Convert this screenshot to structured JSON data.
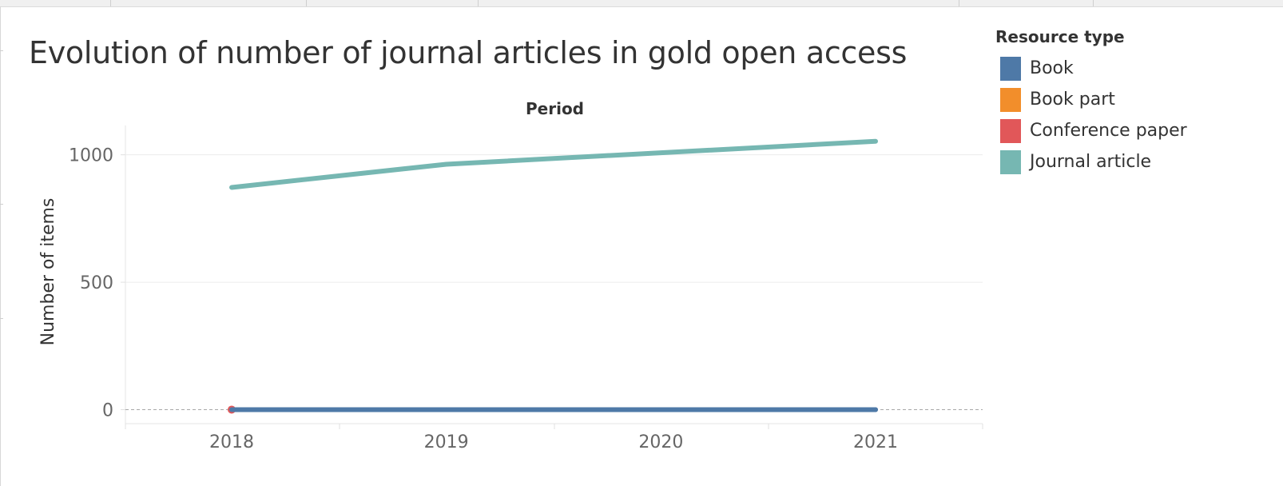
{
  "chart_data": {
    "type": "line",
    "title": "Evolution of number of journal articles in gold open access",
    "xlabel": "Period",
    "ylabel": "Number of items",
    "categories": [
      "2018",
      "2019",
      "2020",
      "2021"
    ],
    "yticks": [
      0,
      500,
      1000
    ],
    "ylim": [
      -55,
      1115
    ],
    "grid": true,
    "legend_position": "top-right",
    "legend_title": "Resource type",
    "series": [
      {
        "name": "Book",
        "color": "#4e79a7",
        "values": [
          0,
          0,
          0,
          0
        ]
      },
      {
        "name": "Book part",
        "color": "#f28e2b",
        "values": [
          null,
          null,
          null,
          null
        ]
      },
      {
        "name": "Conference paper",
        "color": "#e15759",
        "values": [
          0,
          null,
          null,
          null
        ]
      },
      {
        "name": "Journal article",
        "color": "#76b7b2",
        "values": [
          872,
          963,
          1008,
          1053
        ]
      }
    ]
  }
}
